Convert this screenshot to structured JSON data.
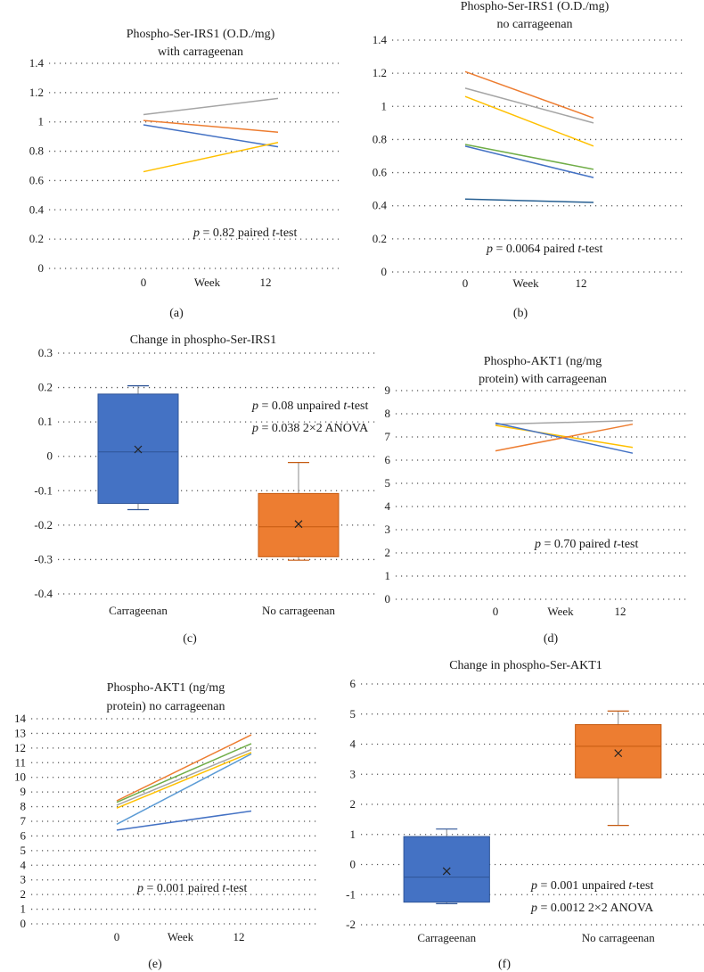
{
  "chart_data": [
    {
      "id": "a",
      "type": "line",
      "caption": "(a)",
      "title": [
        "Phospho-Ser-IRS1 (O.D./mg)",
        "with carrageenan"
      ],
      "ylim": [
        0,
        1.4
      ],
      "ystep": 0.2,
      "yticks": [
        "0",
        "0.2",
        "0.4",
        "0.6",
        "0.8",
        "1",
        "1.2",
        "1.4"
      ],
      "x": [
        0,
        12
      ],
      "xticks": [
        "0",
        "12"
      ],
      "xlabel": "Week",
      "series": [
        {
          "color": "#a5a5a5",
          "values": [
            1.05,
            1.16
          ]
        },
        {
          "color": "#ed7d31",
          "values": [
            1.01,
            0.93
          ]
        },
        {
          "color": "#4472c4",
          "values": [
            0.98,
            0.83
          ]
        },
        {
          "color": "#ffc000",
          "values": [
            0.66,
            0.86
          ]
        }
      ],
      "annotations": [
        {
          "p": "p",
          "text": " = 0.82 paired ",
          "t": "t",
          "tail": "-test"
        }
      ]
    },
    {
      "id": "b",
      "type": "line",
      "caption": "(b)",
      "title": [
        "Phospho-Ser-IRS1 (O.D./mg)",
        "no carrageenan"
      ],
      "ylim": [
        0,
        1.4
      ],
      "ystep": 0.2,
      "yticks": [
        "0",
        "0.2",
        "0.4",
        "0.6",
        "0.8",
        "1",
        "1.2",
        "1.4"
      ],
      "x": [
        0,
        12
      ],
      "xticks": [
        "0",
        "12"
      ],
      "xlabel": "Week",
      "series": [
        {
          "color": "#ed7d31",
          "values": [
            1.21,
            0.93
          ]
        },
        {
          "color": "#a5a5a5",
          "values": [
            1.11,
            0.9
          ]
        },
        {
          "color": "#ffc000",
          "values": [
            1.06,
            0.76
          ]
        },
        {
          "color": "#70ad47",
          "values": [
            0.77,
            0.62
          ]
        },
        {
          "color": "#4472c4",
          "values": [
            0.76,
            0.57
          ]
        },
        {
          "color": "#255e91",
          "values": [
            0.44,
            0.42
          ]
        }
      ],
      "annotations": [
        {
          "p": "p",
          "text": " = 0.0064 paired ",
          "t": "t",
          "tail": "-test"
        }
      ]
    },
    {
      "id": "c",
      "type": "box",
      "caption": "(c)",
      "title": [
        "Change in phospho-Ser-IRS1"
      ],
      "ylim": [
        -0.4,
        0.3
      ],
      "ystep": 0.1,
      "yticks": [
        "-0.4",
        "-0.3",
        "-0.2",
        "-0.1",
        "0",
        "0.1",
        "0.2",
        "0.3"
      ],
      "categories": [
        "Carrageenan",
        "No carrageenan"
      ],
      "boxes": [
        {
          "color": "#4472c4",
          "border": "#2f5597",
          "min": -0.155,
          "q1": -0.137,
          "median": 0.013,
          "q3": 0.181,
          "max": 0.205,
          "mean": 0.02
        },
        {
          "color": "#ed7d31",
          "border": "#c55a11",
          "min": -0.302,
          "q1": -0.292,
          "median": -0.205,
          "q3": -0.108,
          "max": -0.018,
          "mean": -0.197
        }
      ],
      "annotations": [
        {
          "p": "p",
          "text": " = 0.08 unpaired ",
          "t": "t",
          "tail": "-test"
        },
        {
          "p": "p",
          "text": " = 0.038 2×2 ANOVA",
          "t": "",
          "tail": ""
        }
      ]
    },
    {
      "id": "d",
      "type": "line",
      "caption": "(d)",
      "title": [
        "Phospho-AKT1 (ng/mg",
        "protein) with carrageenan"
      ],
      "ylim": [
        0,
        9
      ],
      "ystep": 1,
      "yticks": [
        "0",
        "1",
        "2",
        "3",
        "4",
        "5",
        "6",
        "7",
        "8",
        "9"
      ],
      "x": [
        0,
        12
      ],
      "xticks": [
        "0",
        "12"
      ],
      "xlabel": "Week",
      "series": [
        {
          "color": "#a5a5a5",
          "values": [
            7.55,
            7.7
          ]
        },
        {
          "color": "#ffc000",
          "values": [
            7.5,
            6.55
          ]
        },
        {
          "color": "#4472c4",
          "values": [
            7.6,
            6.3
          ]
        },
        {
          "color": "#ed7d31",
          "values": [
            6.4,
            7.55
          ]
        }
      ],
      "annotations": [
        {
          "p": "p",
          "text": " = 0.70 paired ",
          "t": "t",
          "tail": "-test"
        }
      ]
    },
    {
      "id": "e",
      "type": "line",
      "caption": "(e)",
      "title": [
        "Phospho-AKT1 (ng/mg",
        "protein) no carrageenan"
      ],
      "ylim": [
        0,
        14
      ],
      "ystep": 1,
      "yticks": [
        "0",
        "1",
        "2",
        "3",
        "4",
        "5",
        "6",
        "7",
        "8",
        "9",
        "10",
        "11",
        "12",
        "13",
        "14"
      ],
      "x": [
        0,
        12
      ],
      "xticks": [
        "0",
        "12"
      ],
      "xlabel": "Week",
      "series": [
        {
          "color": "#ed7d31",
          "values": [
            8.4,
            12.9
          ]
        },
        {
          "color": "#70ad47",
          "values": [
            8.3,
            12.3
          ]
        },
        {
          "color": "#a5a5a5",
          "values": [
            8.1,
            11.9
          ]
        },
        {
          "color": "#ffc000",
          "values": [
            7.9,
            11.7
          ]
        },
        {
          "color": "#5b9bd5",
          "values": [
            6.8,
            11.6
          ]
        },
        {
          "color": "#4472c4",
          "values": [
            6.4,
            7.7
          ]
        }
      ],
      "annotations": [
        {
          "p": "p",
          "text": " = 0.001 paired ",
          "t": "t",
          "tail": "-test"
        }
      ]
    },
    {
      "id": "f",
      "type": "box",
      "caption": "(f)",
      "title": [
        "Change in phospho-Ser-AKT1"
      ],
      "ylim": [
        -2,
        6
      ],
      "ystep": 1,
      "yticks": [
        "-2",
        "-1",
        "0",
        "1",
        "2",
        "3",
        "4",
        "5",
        "6"
      ],
      "categories": [
        "Carrageenan",
        "No carrageenan"
      ],
      "boxes": [
        {
          "color": "#4472c4",
          "border": "#2f5597",
          "min": -1.3,
          "q1": -1.25,
          "median": -0.42,
          "q3": 0.93,
          "max": 1.18,
          "mean": -0.22
        },
        {
          "color": "#ed7d31",
          "border": "#c55a11",
          "min": 1.3,
          "q1": 2.88,
          "median": 3.93,
          "q3": 4.65,
          "max": 5.1,
          "mean": 3.7
        }
      ],
      "annotations": [
        {
          "p": "p",
          "text": " = 0.001 unpaired ",
          "t": "t",
          "tail": "-test"
        },
        {
          "p": "p",
          "text": " = 0.0012 2×2 ANOVA",
          "t": "",
          "tail": ""
        }
      ]
    }
  ]
}
